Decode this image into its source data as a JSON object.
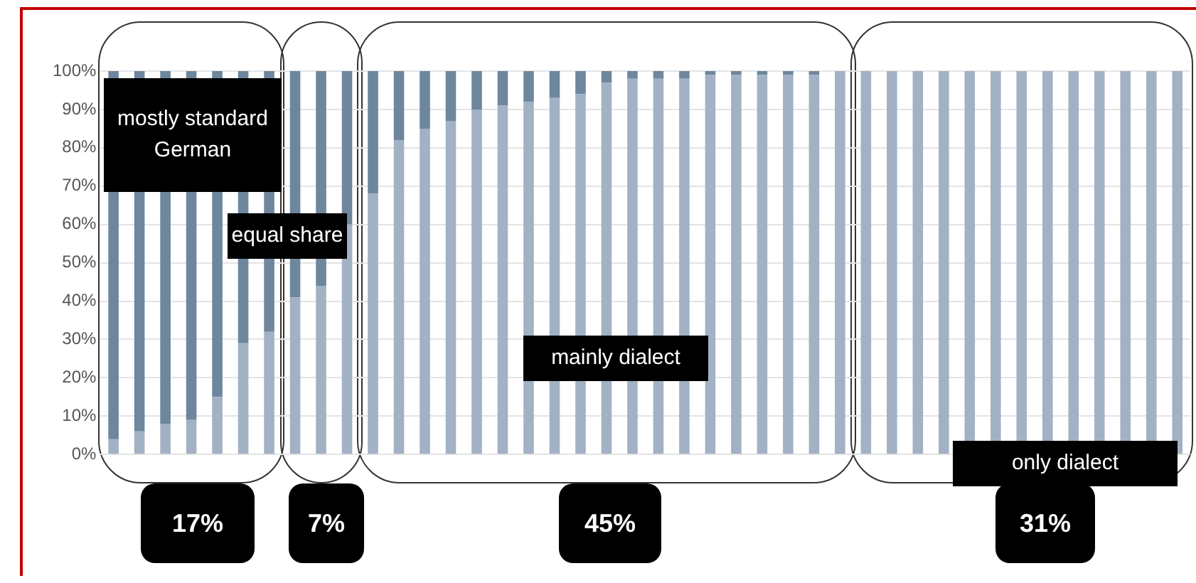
{
  "chart_data": {
    "type": "bar",
    "stacked": true,
    "categories": [
      null,
      null,
      null,
      null,
      null,
      null,
      null,
      null,
      null,
      null,
      null,
      null,
      null,
      null,
      null,
      null,
      null,
      null,
      null,
      null,
      null,
      null,
      null,
      null,
      null,
      null,
      null,
      null,
      null,
      null,
      null,
      null,
      null,
      null,
      null,
      null,
      null,
      null,
      null,
      null,
      null,
      null
    ],
    "series": [
      {
        "color": "#a2b2c4",
        "values": [
          4,
          6,
          8,
          9,
          15,
          29,
          32,
          41,
          44,
          60,
          68,
          82,
          85,
          87,
          90,
          91,
          92,
          93,
          94,
          97,
          98,
          98,
          98,
          99,
          99,
          99,
          99,
          99,
          100,
          100,
          100,
          100,
          100,
          100,
          100,
          100,
          100,
          100,
          100,
          100,
          100,
          100
        ]
      },
      {
        "color": "#6e869e",
        "values": [
          96,
          94,
          92,
          91,
          85,
          71,
          68,
          59,
          56,
          40,
          32,
          18,
          15,
          13,
          10,
          9,
          8,
          7,
          6,
          3,
          2,
          2,
          2,
          1,
          1,
          1,
          1,
          1,
          0,
          0,
          0,
          0,
          0,
          0,
          0,
          0,
          0,
          0,
          0,
          0,
          0,
          0
        ]
      }
    ],
    "ylim": [
      0,
      100
    ],
    "yticks": [
      {
        "value": 0,
        "label": "0%"
      },
      {
        "value": 10,
        "label": "10%"
      },
      {
        "value": 20,
        "label": "20%"
      },
      {
        "value": 30,
        "label": "30%"
      },
      {
        "value": 40,
        "label": "40%"
      },
      {
        "value": 50,
        "label": "50%"
      },
      {
        "value": 60,
        "label": "60%"
      },
      {
        "value": 70,
        "label": "70%"
      },
      {
        "value": 80,
        "label": "80%"
      },
      {
        "value": 90,
        "label": "90%"
      },
      {
        "value": 100,
        "label": "100%"
      }
    ],
    "grid": "y",
    "legend": false,
    "annotations": [
      "mostly standard German",
      "equal share",
      "mainly dialect",
      "only dialect",
      "17%",
      "7%",
      "45%",
      "31%"
    ]
  }
}
